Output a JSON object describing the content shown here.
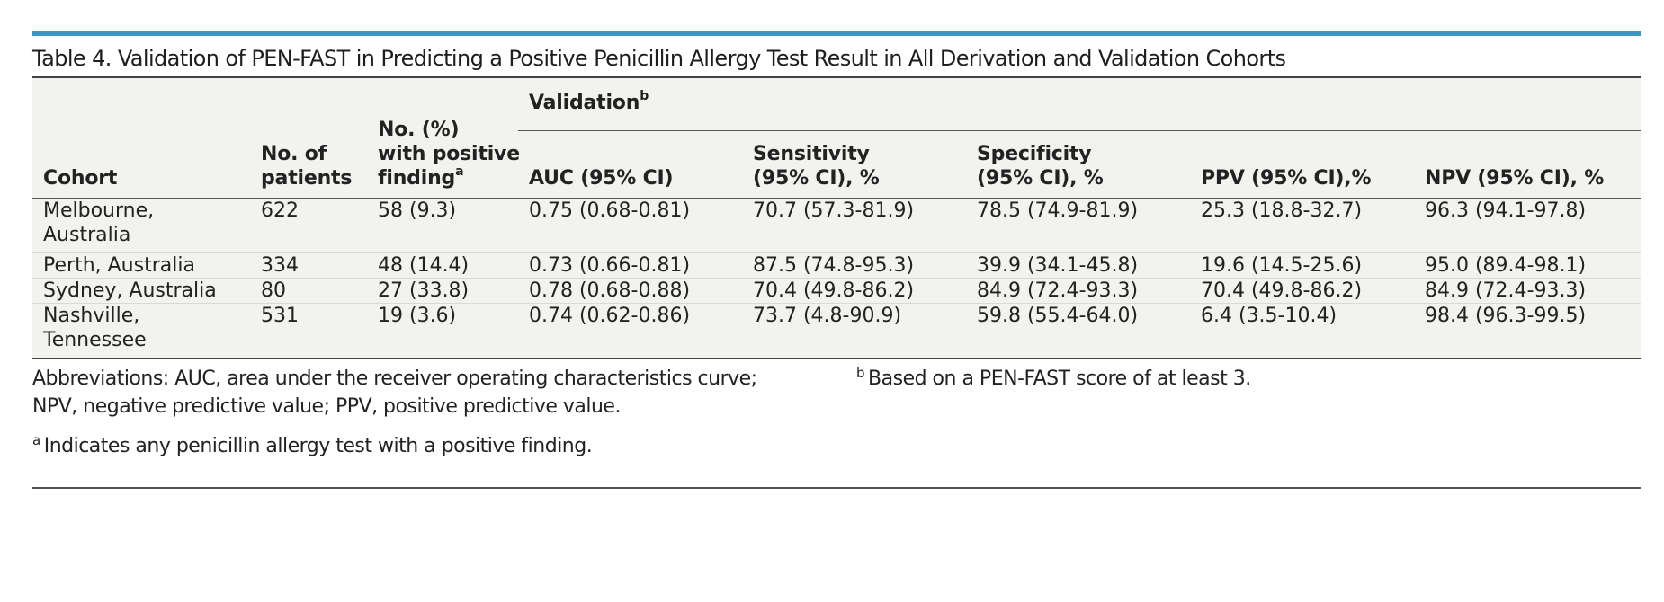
{
  "table": {
    "title": "Table 4. Validation of PEN-FAST in Predicting a Positive Penicillin Allergy Test Result in All Derivation and Validation Cohorts",
    "headers": {
      "cohort": "Cohort",
      "patients_line1": "No. of",
      "patients_line2": "patients",
      "positive_line1": "No. (%)",
      "positive_line2": "with positive",
      "positive_line3": "finding",
      "positive_sup": "a",
      "validation": "Validation",
      "validation_sup": "b",
      "auc": "AUC (95% CI)",
      "sensitivity_line1": "Sensitivity",
      "sensitivity_line2": "(95% CI), %",
      "specificity_line1": "Specificity",
      "specificity_line2": "(95% CI), %",
      "ppv": "PPV (95% CI),%",
      "npv": "NPV (95% CI), %"
    },
    "rows": [
      {
        "cohort_line1": "Melbourne,",
        "cohort_line2": "Australia",
        "patients": "622",
        "positive": "58 (9.3)",
        "auc": "0.75 (0.68-0.81)",
        "sensitivity": "70.7 (57.3-81.9)",
        "specificity": "78.5 (74.9-81.9)",
        "ppv": "25.3 (18.8-32.7)",
        "npv": "96.3 (94.1-97.8)"
      },
      {
        "cohort_line1": "Perth, Australia",
        "cohort_line2": "",
        "patients": "334",
        "positive": "48 (14.4)",
        "auc": "0.73 (0.66-0.81)",
        "sensitivity": "87.5 (74.8-95.3)",
        "specificity": "39.9 (34.1-45.8)",
        "ppv": "19.6 (14.5-25.6)",
        "npv": "95.0 (89.4-98.1)"
      },
      {
        "cohort_line1": "Sydney, Australia",
        "cohort_line2": "",
        "patients": "80",
        "positive": "27 (33.8)",
        "auc": "0.78 (0.68-0.88)",
        "sensitivity": "70.4 (49.8-86.2)",
        "specificity": "84.9 (72.4-93.3)",
        "ppv": "70.4 (49.8-86.2)",
        "npv": "84.9 (72.4-93.3)"
      },
      {
        "cohort_line1": "Nashville,",
        "cohort_line2": "Tennessee",
        "patients": "531",
        "positive": "19 (3.6)",
        "auc": "0.74 (0.62-0.86)",
        "sensitivity": "73.7 (4.8-90.9)",
        "specificity": "59.8 (55.4-64.0)",
        "ppv": "6.4 (3.5-10.4)",
        "npv": "98.4 (96.3-99.5)"
      }
    ],
    "footnotes": {
      "abbreviations_line1": "Abbreviations: AUC, area under the receiver operating characteristics curve;",
      "abbreviations_line2": "NPV, negative predictive value; PPV, positive predictive value.",
      "a_marker": "a",
      "a_text": "Indicates any penicillin allergy test with a positive finding.",
      "b_marker": "b",
      "b_text": "Based on a PEN-FAST score of at least 3."
    },
    "colors": {
      "top_rule": "#3d97c6",
      "table_background": "#f2f2ef"
    }
  }
}
